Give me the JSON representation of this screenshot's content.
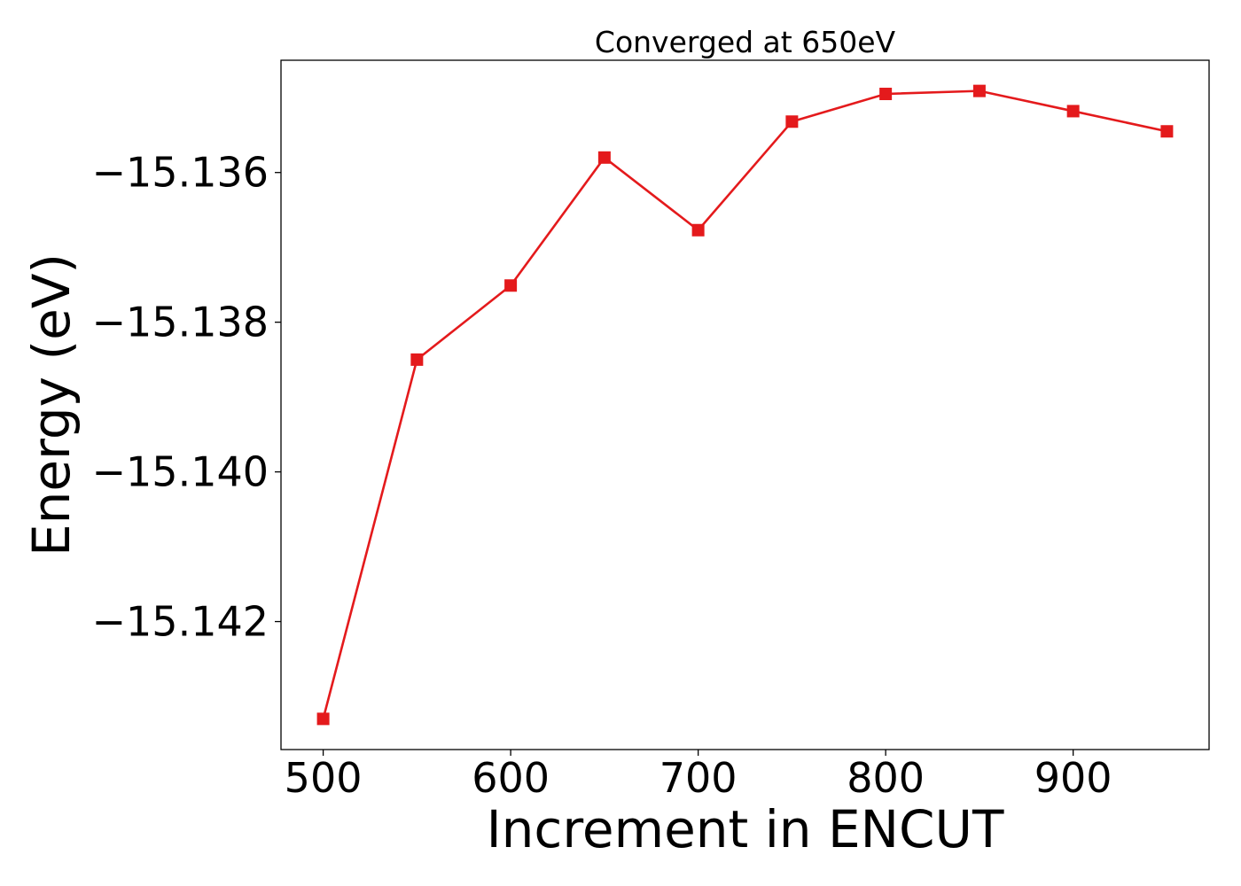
{
  "chart_data": {
    "type": "line",
    "title": "Converged at 650eV",
    "xlabel": "Increment in ENCUT",
    "ylabel": "Energy (eV)",
    "x": [
      500,
      550,
      600,
      650,
      700,
      750,
      800,
      850,
      900,
      950
    ],
    "series": [
      {
        "values": [
          -15.1433,
          -15.1385,
          -15.13751,
          -15.1358,
          -15.13677,
          -15.13532,
          -15.13495,
          -15.13491,
          -15.13518,
          -15.13545
        ],
        "color": "#e41a1c",
        "marker": "square"
      }
    ],
    "xlim": [
      477.5,
      972.5
    ],
    "ylim": [
      -15.14371,
      -15.1345
    ],
    "xticks": [
      500,
      600,
      700,
      800,
      900
    ],
    "xtick_labels": [
      "500",
      "600",
      "700",
      "800",
      "900"
    ],
    "yticks": [
      -15.142,
      -15.14,
      -15.138,
      -15.136
    ],
    "ytick_labels": [
      "−15.142",
      "−15.140",
      "−15.138",
      "−15.136"
    ],
    "grid": false,
    "legend": "none"
  }
}
